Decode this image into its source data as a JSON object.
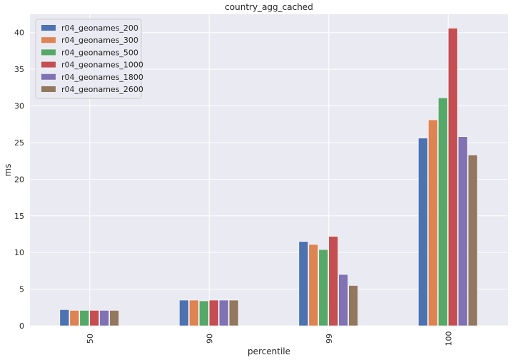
{
  "chart_data": {
    "type": "bar",
    "title": "country_agg_cached",
    "xlabel": "percentile",
    "ylabel": "ms",
    "categories": [
      "50",
      "90",
      "99",
      "100"
    ],
    "ylim": [
      0,
      42.5
    ],
    "yticks": [
      0,
      5,
      10,
      15,
      20,
      25,
      30,
      35,
      40
    ],
    "grid": true,
    "legend_position": "top-left",
    "colors": [
      "#4c72b0",
      "#dd8452",
      "#55a868",
      "#c44e52",
      "#8172b3",
      "#937860"
    ],
    "series": [
      {
        "name": "r04_geonames_200",
        "values": [
          2.2,
          3.5,
          11.5,
          25.6
        ]
      },
      {
        "name": "r04_geonames_300",
        "values": [
          2.1,
          3.5,
          11.1,
          28.1
        ]
      },
      {
        "name": "r04_geonames_500",
        "values": [
          2.1,
          3.4,
          10.4,
          31.1
        ]
      },
      {
        "name": "r04_geonames_1000",
        "values": [
          2.1,
          3.5,
          12.2,
          40.6
        ]
      },
      {
        "name": "r04_geonames_1800",
        "values": [
          2.1,
          3.5,
          7.0,
          25.8
        ]
      },
      {
        "name": "r04_geonames_2600",
        "values": [
          2.1,
          3.5,
          5.5,
          23.3
        ]
      }
    ]
  }
}
